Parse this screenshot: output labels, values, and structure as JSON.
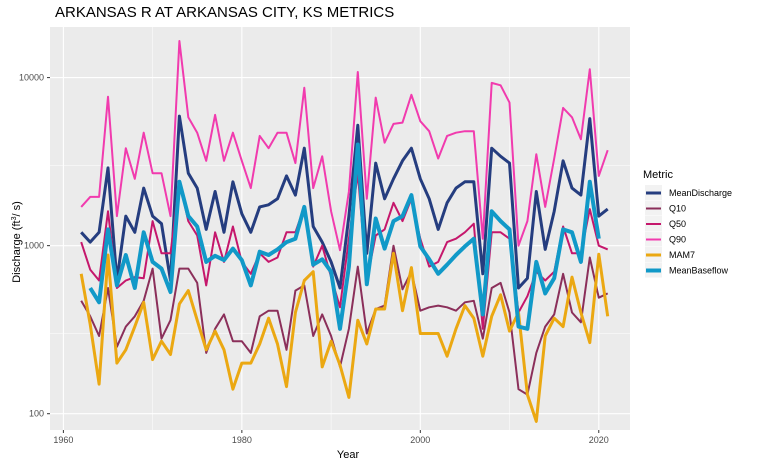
{
  "chart_data": {
    "type": "line",
    "title": "ARKANSAS R AT ARKANSAS CITY, KS  METRICS",
    "xlabel": "Year",
    "ylabel": "Discharge (ft³/ s)",
    "ylabel_parts": [
      "Discharge (ft",
      "3",
      "/ s)"
    ],
    "y_scale": "log",
    "xlim": [
      1958.5,
      2023.5
    ],
    "ylim": [
      80,
      20000
    ],
    "x_ticks": [
      1960,
      1980,
      2000,
      2020
    ],
    "y_ticks": [
      100,
      1000,
      10000
    ],
    "grid": true,
    "legend_title": "Metric",
    "legend_position": "right",
    "x": [
      1962,
      1963,
      1964,
      1965,
      1966,
      1967,
      1968,
      1969,
      1970,
      1971,
      1972,
      1973,
      1974,
      1975,
      1976,
      1977,
      1978,
      1979,
      1980,
      1981,
      1982,
      1983,
      1984,
      1985,
      1986,
      1987,
      1988,
      1989,
      1990,
      1991,
      1992,
      1993,
      1994,
      1995,
      1996,
      1997,
      1998,
      1999,
      2000,
      2001,
      2002,
      2003,
      2004,
      2005,
      2006,
      2007,
      2008,
      2009,
      2010,
      2011,
      2012,
      2013,
      2014,
      2015,
      2016,
      2017,
      2018,
      2019,
      2020,
      2021
    ],
    "series": [
      {
        "name": "MeanDischarge",
        "color": "#253D7F",
        "width": 3,
        "values": [
          1200,
          1050,
          1200,
          2900,
          620,
          1500,
          1200,
          2200,
          1500,
          1350,
          620,
          5900,
          2700,
          2200,
          1250,
          2100,
          1200,
          2400,
          1550,
          1200,
          1700,
          1750,
          1900,
          2600,
          2000,
          3800,
          1300,
          1050,
          800,
          560,
          1500,
          5200,
          900,
          3100,
          1900,
          2500,
          3200,
          3800,
          2500,
          1900,
          1250,
          1800,
          2200,
          2400,
          2400,
          680,
          3800,
          3400,
          3100,
          560,
          640,
          2100,
          950,
          1600,
          3200,
          2200,
          2000,
          5700,
          1500,
          1650
        ]
      },
      {
        "name": "Q10",
        "color": "#8B2F5A",
        "width": 2,
        "values": [
          470,
          380,
          290,
          560,
          250,
          330,
          380,
          470,
          730,
          280,
          360,
          730,
          730,
          600,
          230,
          320,
          390,
          270,
          270,
          230,
          380,
          410,
          410,
          240,
          540,
          580,
          290,
          390,
          290,
          190,
          320,
          750,
          300,
          420,
          440,
          1000,
          550,
          700,
          410,
          430,
          440,
          430,
          410,
          460,
          470,
          280,
          560,
          600,
          400,
          140,
          130,
          230,
          330,
          390,
          680,
          400,
          350,
          850,
          490,
          520
        ]
      },
      {
        "name": "Q50",
        "color": "#C5176C",
        "width": 2,
        "values": [
          1050,
          720,
          620,
          1600,
          560,
          620,
          650,
          640,
          1400,
          900,
          900,
          2400,
          1400,
          1150,
          580,
          1200,
          800,
          1300,
          800,
          680,
          900,
          800,
          850,
          1200,
          1200,
          1700,
          750,
          1000,
          650,
          430,
          1100,
          2700,
          620,
          1150,
          1250,
          1800,
          1400,
          1900,
          1100,
          750,
          800,
          1050,
          1100,
          1200,
          1350,
          320,
          1200,
          1200,
          1100,
          400,
          500,
          700,
          620,
          700,
          1300,
          900,
          900,
          1650,
          1000,
          950
        ]
      },
      {
        "name": "Q90",
        "color": "#F13BAE",
        "width": 2,
        "values": [
          1700,
          1950,
          1950,
          7700,
          1500,
          3800,
          2500,
          4700,
          2700,
          2700,
          1500,
          16500,
          5800,
          4700,
          3200,
          6000,
          3200,
          4700,
          3200,
          2200,
          4500,
          3800,
          4700,
          4700,
          3100,
          8700,
          2200,
          3400,
          1600,
          940,
          2100,
          10800,
          1900,
          7600,
          4100,
          5300,
          5400,
          7900,
          5500,
          4800,
          3300,
          4500,
          4700,
          4800,
          4800,
          1100,
          9300,
          9000,
          7100,
          1000,
          1400,
          3500,
          1700,
          3300,
          6600,
          5800,
          4300,
          11200,
          2600,
          3700
        ]
      },
      {
        "name": "MAM7",
        "color": "#EBA812",
        "width": 3,
        "values": [
          680,
          340,
          150,
          880,
          200,
          240,
          330,
          460,
          210,
          270,
          225,
          450,
          540,
          360,
          240,
          310,
          240,
          140,
          200,
          200,
          260,
          370,
          260,
          145,
          400,
          620,
          700,
          190,
          270,
          195,
          125,
          360,
          260,
          420,
          420,
          900,
          410,
          740,
          300,
          300,
          300,
          220,
          320,
          440,
          370,
          220,
          380,
          510,
          310,
          400,
          130,
          90,
          290,
          370,
          330,
          650,
          400,
          265,
          890,
          380
        ]
      },
      {
        "name": "MeanBaseflow",
        "color": "#1199C8",
        "width": 4,
        "values": null
      }
    ]
  },
  "baseflow_values": [
    null,
    560,
    460,
    1250,
    580,
    880,
    560,
    1200,
    800,
    730,
    530,
    2400,
    1500,
    1300,
    800,
    870,
    820,
    960,
    820,
    580,
    920,
    880,
    950,
    1050,
    1100,
    1700,
    770,
    830,
    700,
    320,
    750,
    4000,
    590,
    1450,
    960,
    1400,
    1500,
    2000,
    990,
    830,
    680,
    770,
    880,
    990,
    1100,
    390,
    1600,
    1400,
    1250,
    330,
    320,
    800,
    520,
    640,
    1250,
    1200,
    800,
    2400,
    1100,
    null
  ]
}
